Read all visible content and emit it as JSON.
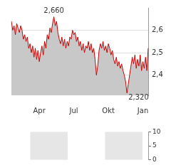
{
  "chart_data": [
    {
      "type": "line",
      "categories": [
        null,
        null,
        null,
        null,
        null,
        null,
        null,
        null,
        null,
        null,
        null,
        null,
        null,
        null,
        null,
        null,
        null,
        null,
        null,
        null,
        null,
        "Apr",
        null,
        null,
        null,
        null,
        null,
        null,
        null,
        null,
        null,
        null,
        null,
        null,
        null,
        null,
        null,
        null,
        null,
        null,
        null,
        null,
        null,
        null,
        null,
        null,
        null,
        "Jul",
        null,
        null,
        null,
        null,
        null,
        null,
        null,
        null,
        null,
        null,
        null,
        null,
        null,
        null,
        null,
        null,
        null,
        null,
        null,
        null,
        null,
        null,
        null,
        null,
        null,
        "Okt",
        null,
        null,
        null,
        null,
        null,
        null,
        null,
        null,
        null,
        null,
        null,
        null,
        null,
        null,
        null,
        null,
        null,
        null,
        null,
        null,
        null,
        null,
        null,
        null,
        null,
        "Jan",
        null,
        null,
        null,
        null
      ],
      "values": [
        2.64,
        2.6,
        2.62,
        2.58,
        2.63,
        2.61,
        2.59,
        2.62,
        2.6,
        2.56,
        2.58,
        2.55,
        2.57,
        2.52,
        2.54,
        2.5,
        2.53,
        2.48,
        2.52,
        2.47,
        2.51,
        2.46,
        2.5,
        2.53,
        2.49,
        2.55,
        2.52,
        2.58,
        2.56,
        2.61,
        2.59,
        2.63,
        2.66,
        2.62,
        2.64,
        2.59,
        2.56,
        2.54,
        2.57,
        2.53,
        2.56,
        2.52,
        2.55,
        2.53,
        2.57,
        2.56,
        2.6,
        2.58,
        2.59,
        2.55,
        2.57,
        2.53,
        2.55,
        2.51,
        2.54,
        2.5,
        2.53,
        2.52,
        2.55,
        2.51,
        2.54,
        2.5,
        2.52,
        2.47,
        2.4,
        2.44,
        2.51,
        2.54,
        2.52,
        2.55,
        2.51,
        2.53,
        2.5,
        2.54,
        2.52,
        2.49,
        2.51,
        2.47,
        2.45,
        2.48,
        2.44,
        2.46,
        2.43,
        2.45,
        2.42,
        2.4,
        2.37,
        2.32,
        2.36,
        2.4,
        2.44,
        2.48,
        2.45,
        2.49,
        2.43,
        2.47,
        2.44,
        2.49,
        2.42,
        2.46,
        2.43,
        2.48,
        2.42,
        2.52
      ],
      "color": "#cc0000",
      "ylim": [
        2.31,
        2.7
      ],
      "yticks": [
        {
          "value": 2.4,
          "label": "2,4"
        },
        {
          "value": 2.5,
          "label": "2,5"
        },
        {
          "value": 2.6,
          "label": "2,6"
        }
      ],
      "grid": true,
      "annotations": [
        {
          "value": 2.66,
          "label": "2,660"
        },
        {
          "value": 2.32,
          "label": "2,320"
        }
      ]
    },
    {
      "type": "bar",
      "ylim": [
        0,
        10
      ],
      "yticks": [
        0,
        5,
        10
      ],
      "grid": false,
      "tick_labels": "y"
    }
  ]
}
